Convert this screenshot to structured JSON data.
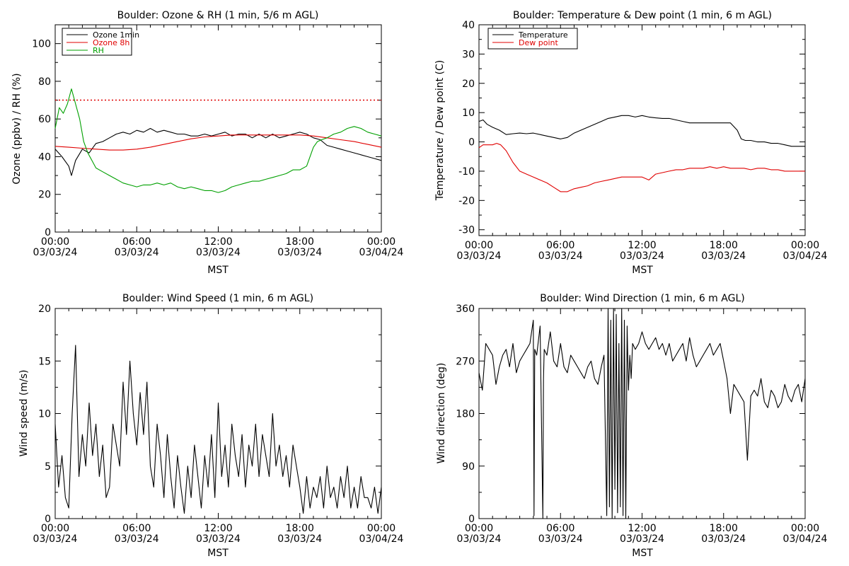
{
  "x_tick_labels": [
    {
      "time": "00:00",
      "date": "03/03/24"
    },
    {
      "time": "06:00",
      "date": "03/03/24"
    },
    {
      "time": "12:00",
      "date": "03/03/24"
    },
    {
      "time": "18:00",
      "date": "03/03/24"
    },
    {
      "time": "00:00",
      "date": "03/04/24"
    }
  ],
  "x_axis_label": "MST",
  "chart_data": [
    {
      "id": "ozone-rh",
      "type": "line",
      "title": "Boulder: Ozone & RH (1 min, 5/6 m AGL)",
      "xlabel": "MST",
      "ylabel": "Ozone (ppbv) / RH (%)",
      "xlim_hours": [
        0,
        24
      ],
      "ylim": [
        0,
        110
      ],
      "yticks": [
        0,
        20,
        40,
        60,
        80,
        100
      ],
      "legend_position": "top-left",
      "reference_line": {
        "y": 70,
        "style": "dotted",
        "color": "#e00000"
      },
      "series": [
        {
          "name": "Ozone 1min",
          "color": "#000000",
          "x": [
            0,
            0.5,
            1,
            1.2,
            1.5,
            2,
            2.5,
            3,
            3.5,
            4,
            4.5,
            5,
            5.5,
            6,
            6.5,
            7,
            7.5,
            8,
            8.5,
            9,
            9.5,
            10,
            10.5,
            11,
            11.5,
            12,
            12.5,
            13,
            13.5,
            14,
            14.5,
            15,
            15.5,
            16,
            16.5,
            17,
            17.5,
            18,
            18.5,
            19,
            19.5,
            20,
            20.5,
            21,
            21.5,
            22,
            22.5,
            23,
            23.5,
            24
          ],
          "y": [
            44,
            40,
            35,
            30,
            38,
            44,
            42,
            47,
            48,
            50,
            52,
            53,
            52,
            54,
            53,
            55,
            53,
            54,
            53,
            52,
            52,
            51,
            51,
            52,
            51,
            52,
            53,
            51,
            52,
            52,
            50,
            52,
            50,
            52,
            50,
            51,
            52,
            53,
            52,
            50,
            49,
            46,
            45,
            44,
            43,
            42,
            41,
            40,
            39,
            38
          ]
        },
        {
          "name": "Ozone 8h",
          "color": "#e00000",
          "x": [
            0,
            1,
            2,
            3,
            4,
            5,
            6,
            7,
            8,
            9,
            10,
            11,
            12,
            13,
            14,
            15,
            16,
            17,
            18,
            19,
            20,
            21,
            22,
            23,
            24
          ],
          "y": [
            45.5,
            45,
            44.5,
            44,
            43.5,
            43.5,
            44,
            45,
            46.5,
            48,
            49.5,
            50.5,
            51,
            51.5,
            51.5,
            51.5,
            51.5,
            51.5,
            51.5,
            51,
            50,
            49,
            48,
            46.5,
            45
          ]
        },
        {
          "name": "RH",
          "color": "#00a000",
          "x": [
            0,
            0.3,
            0.6,
            0.9,
            1.2,
            1.5,
            1.8,
            2.1,
            2.4,
            2.7,
            3,
            3.5,
            4,
            4.5,
            5,
            5.5,
            6,
            6.5,
            7,
            7.5,
            8,
            8.5,
            9,
            9.5,
            10,
            10.5,
            11,
            11.5,
            12,
            12.5,
            13,
            13.5,
            14,
            14.5,
            15,
            15.5,
            16,
            16.5,
            17,
            17.5,
            18,
            18.5,
            19,
            19.3,
            19.6,
            20,
            20.5,
            21,
            21.5,
            22,
            22.5,
            23,
            23.5,
            24
          ],
          "y": [
            55,
            66,
            63,
            68,
            76,
            68,
            60,
            48,
            42,
            38,
            34,
            32,
            30,
            28,
            26,
            25,
            24,
            25,
            25,
            26,
            25,
            26,
            24,
            23,
            24,
            23,
            22,
            22,
            21,
            22,
            24,
            25,
            26,
            27,
            27,
            28,
            29,
            30,
            31,
            33,
            33,
            35,
            45,
            48,
            49,
            50,
            52,
            53,
            55,
            56,
            55,
            53,
            52,
            51
          ]
        }
      ]
    },
    {
      "id": "temp-dew",
      "type": "line",
      "title": "Boulder: Temperature & Dew point (1 min, 6 m AGL)",
      "xlabel": "MST",
      "ylabel": "Temperature / Dew point (C)",
      "xlim_hours": [
        0,
        24
      ],
      "ylim": [
        -32,
        40
      ],
      "yticks": [
        -30,
        -20,
        -10,
        0,
        10,
        20,
        30,
        40
      ],
      "legend_position": "top-left",
      "series": [
        {
          "name": "Temperature",
          "color": "#000000",
          "x": [
            0,
            0.3,
            0.6,
            1,
            1.5,
            2,
            2.5,
            3,
            3.5,
            4,
            4.5,
            5,
            5.5,
            6,
            6.5,
            7,
            7.5,
            8,
            8.5,
            9,
            9.5,
            10,
            10.5,
            11,
            11.5,
            12,
            12.5,
            13,
            13.5,
            14,
            14.5,
            15,
            15.5,
            16,
            16.5,
            17,
            17.5,
            18,
            18.5,
            19,
            19.3,
            19.6,
            20,
            20.5,
            21,
            21.5,
            22,
            22.5,
            23,
            23.5,
            24
          ],
          "y": [
            7,
            7.5,
            6,
            5,
            4,
            2.5,
            2.8,
            3,
            2.8,
            3,
            2.5,
            2,
            1.5,
            1,
            1.5,
            3,
            4,
            5,
            6,
            7,
            8,
            8.5,
            9,
            9,
            8.5,
            9,
            8.5,
            8.2,
            8,
            8,
            7.5,
            7,
            6.5,
            6.5,
            6.5,
            6.5,
            6.5,
            6.5,
            6.5,
            4,
            1,
            0.5,
            0.5,
            0,
            0,
            -0.5,
            -0.5,
            -1,
            -1.5,
            -1.5,
            -1.5
          ]
        },
        {
          "name": "Dew point",
          "color": "#e00000",
          "x": [
            0,
            0.3,
            0.6,
            1,
            1.3,
            1.6,
            2,
            2.5,
            3,
            3.5,
            4,
            4.5,
            5,
            5.5,
            6,
            6.5,
            7,
            7.5,
            8,
            8.5,
            9,
            9.5,
            10,
            10.5,
            11,
            11.5,
            12,
            12.5,
            13,
            13.5,
            14,
            14.5,
            15,
            15.5,
            16,
            16.5,
            17,
            17.5,
            18,
            18.5,
            19,
            19.5,
            20,
            20.5,
            21,
            21.5,
            22,
            22.5,
            23,
            23.5,
            24
          ],
          "y": [
            -2,
            -1,
            -1,
            -1,
            -0.5,
            -1,
            -3,
            -7,
            -10,
            -11,
            -12,
            -13,
            -14,
            -15.5,
            -17,
            -17,
            -16,
            -15.5,
            -15,
            -14,
            -13.5,
            -13,
            -12.5,
            -12,
            -12,
            -12,
            -12,
            -13,
            -11,
            -10.5,
            -10,
            -9.5,
            -9.5,
            -9,
            -9,
            -9,
            -8.5,
            -9,
            -8.5,
            -9,
            -9,
            -9,
            -9.5,
            -9,
            -9,
            -9.5,
            -9.5,
            -10,
            -10,
            -10,
            -10
          ]
        }
      ]
    },
    {
      "id": "wind-speed",
      "type": "line",
      "title": "Boulder: Wind Speed (1 min, 6 m AGL)",
      "xlabel": "MST",
      "ylabel": "Wind speed (m/s)",
      "xlim_hours": [
        0,
        24
      ],
      "ylim": [
        0,
        20
      ],
      "yticks": [
        0,
        5,
        10,
        15,
        20
      ],
      "series": [
        {
          "name": "",
          "color": "#000000",
          "x": [
            0,
            0.25,
            0.5,
            0.75,
            1,
            1.25,
            1.5,
            1.75,
            2,
            2.25,
            2.5,
            2.75,
            3,
            3.25,
            3.5,
            3.75,
            4,
            4.25,
            4.5,
            4.75,
            5,
            5.25,
            5.5,
            5.75,
            6,
            6.25,
            6.5,
            6.75,
            7,
            7.25,
            7.5,
            7.75,
            8,
            8.25,
            8.5,
            8.75,
            9,
            9.25,
            9.5,
            9.75,
            10,
            10.25,
            10.5,
            10.75,
            11,
            11.25,
            11.5,
            11.75,
            12,
            12.25,
            12.5,
            12.75,
            13,
            13.25,
            13.5,
            13.75,
            14,
            14.25,
            14.5,
            14.75,
            15,
            15.25,
            15.5,
            15.75,
            16,
            16.25,
            16.5,
            16.75,
            17,
            17.25,
            17.5,
            17.75,
            18,
            18.25,
            18.5,
            18.75,
            19,
            19.25,
            19.5,
            19.75,
            20,
            20.25,
            20.5,
            20.75,
            21,
            21.25,
            21.5,
            21.75,
            22,
            22.25,
            22.5,
            22.75,
            23,
            23.25,
            23.5,
            23.75,
            24
          ],
          "y": [
            9,
            3,
            6,
            2,
            1,
            10,
            16.5,
            4,
            8,
            5,
            11,
            6,
            9,
            4,
            7,
            2,
            3,
            9,
            7,
            5,
            13,
            8,
            15,
            10,
            7,
            12,
            8,
            13,
            5,
            3,
            9,
            6,
            2,
            8,
            4,
            1,
            6,
            3,
            0.5,
            5,
            2,
            7,
            4,
            1,
            6,
            3,
            8,
            2,
            11,
            4,
            7,
            3,
            9,
            6,
            4,
            8,
            3,
            7,
            5,
            9,
            4,
            8,
            6,
            4,
            10,
            5,
            7,
            4,
            6,
            3,
            7,
            5,
            3,
            0.5,
            4,
            1,
            3,
            2,
            4,
            1,
            5,
            2,
            3,
            1,
            4,
            2,
            5,
            1,
            3,
            1,
            4,
            2,
            2,
            1,
            3,
            0.5,
            3
          ]
        }
      ]
    },
    {
      "id": "wind-dir",
      "type": "line",
      "title": "Boulder: Wind Direction (1 min, 6 m AGL)",
      "xlabel": "MST",
      "ylabel": "Wind direction (deg)",
      "xlim_hours": [
        0,
        24
      ],
      "ylim": [
        0,
        360
      ],
      "yticks": [
        0,
        90,
        180,
        270,
        360
      ],
      "series": [
        {
          "name": "",
          "color": "#000000",
          "x": [
            0,
            0.25,
            0.5,
            0.75,
            1,
            1.25,
            1.5,
            1.75,
            2,
            2.25,
            2.5,
            2.75,
            3,
            3.25,
            3.5,
            3.75,
            4,
            4.05,
            4.1,
            4.25,
            4.5,
            4.7,
            4.75,
            4.8,
            5,
            5.25,
            5.5,
            5.75,
            6,
            6.25,
            6.5,
            6.75,
            7,
            7.25,
            7.5,
            7.75,
            8,
            8.25,
            8.5,
            8.75,
            9,
            9.2,
            9.4,
            9.5,
            9.6,
            9.7,
            9.8,
            9.9,
            10,
            10.1,
            10.2,
            10.3,
            10.4,
            10.5,
            10.6,
            10.7,
            10.8,
            10.9,
            11,
            11.1,
            11.2,
            11.3,
            11.5,
            11.75,
            12,
            12.25,
            12.5,
            12.75,
            13,
            13.25,
            13.5,
            13.75,
            14,
            14.25,
            14.5,
            14.75,
            15,
            15.25,
            15.5,
            15.75,
            16,
            16.25,
            16.5,
            16.75,
            17,
            17.25,
            17.5,
            17.75,
            18,
            18.25,
            18.5,
            18.75,
            19,
            19.25,
            19.5,
            19.75,
            20,
            20.25,
            20.5,
            20.75,
            21,
            21.25,
            21.5,
            21.75,
            22,
            22.25,
            22.5,
            22.75,
            23,
            23.25,
            23.5,
            23.75,
            24
          ],
          "y": [
            250,
            220,
            300,
            290,
            280,
            230,
            260,
            280,
            290,
            260,
            300,
            250,
            270,
            280,
            290,
            300,
            340,
            5,
            290,
            280,
            330,
            0,
            240,
            290,
            280,
            320,
            270,
            260,
            300,
            260,
            250,
            280,
            270,
            260,
            250,
            240,
            260,
            270,
            240,
            230,
            260,
            280,
            5,
            360,
            20,
            340,
            0,
            360,
            50,
            350,
            10,
            300,
            20,
            360,
            5,
            340,
            0,
            330,
            220,
            280,
            240,
            300,
            290,
            300,
            320,
            300,
            290,
            300,
            310,
            290,
            300,
            280,
            300,
            270,
            280,
            290,
            300,
            270,
            310,
            280,
            260,
            270,
            280,
            290,
            300,
            280,
            290,
            300,
            270,
            240,
            180,
            230,
            220,
            210,
            200,
            100,
            210,
            220,
            210,
            240,
            200,
            190,
            220,
            210,
            190,
            200,
            230,
            210,
            200,
            220,
            230,
            200,
            240
          ]
        }
      ]
    }
  ]
}
